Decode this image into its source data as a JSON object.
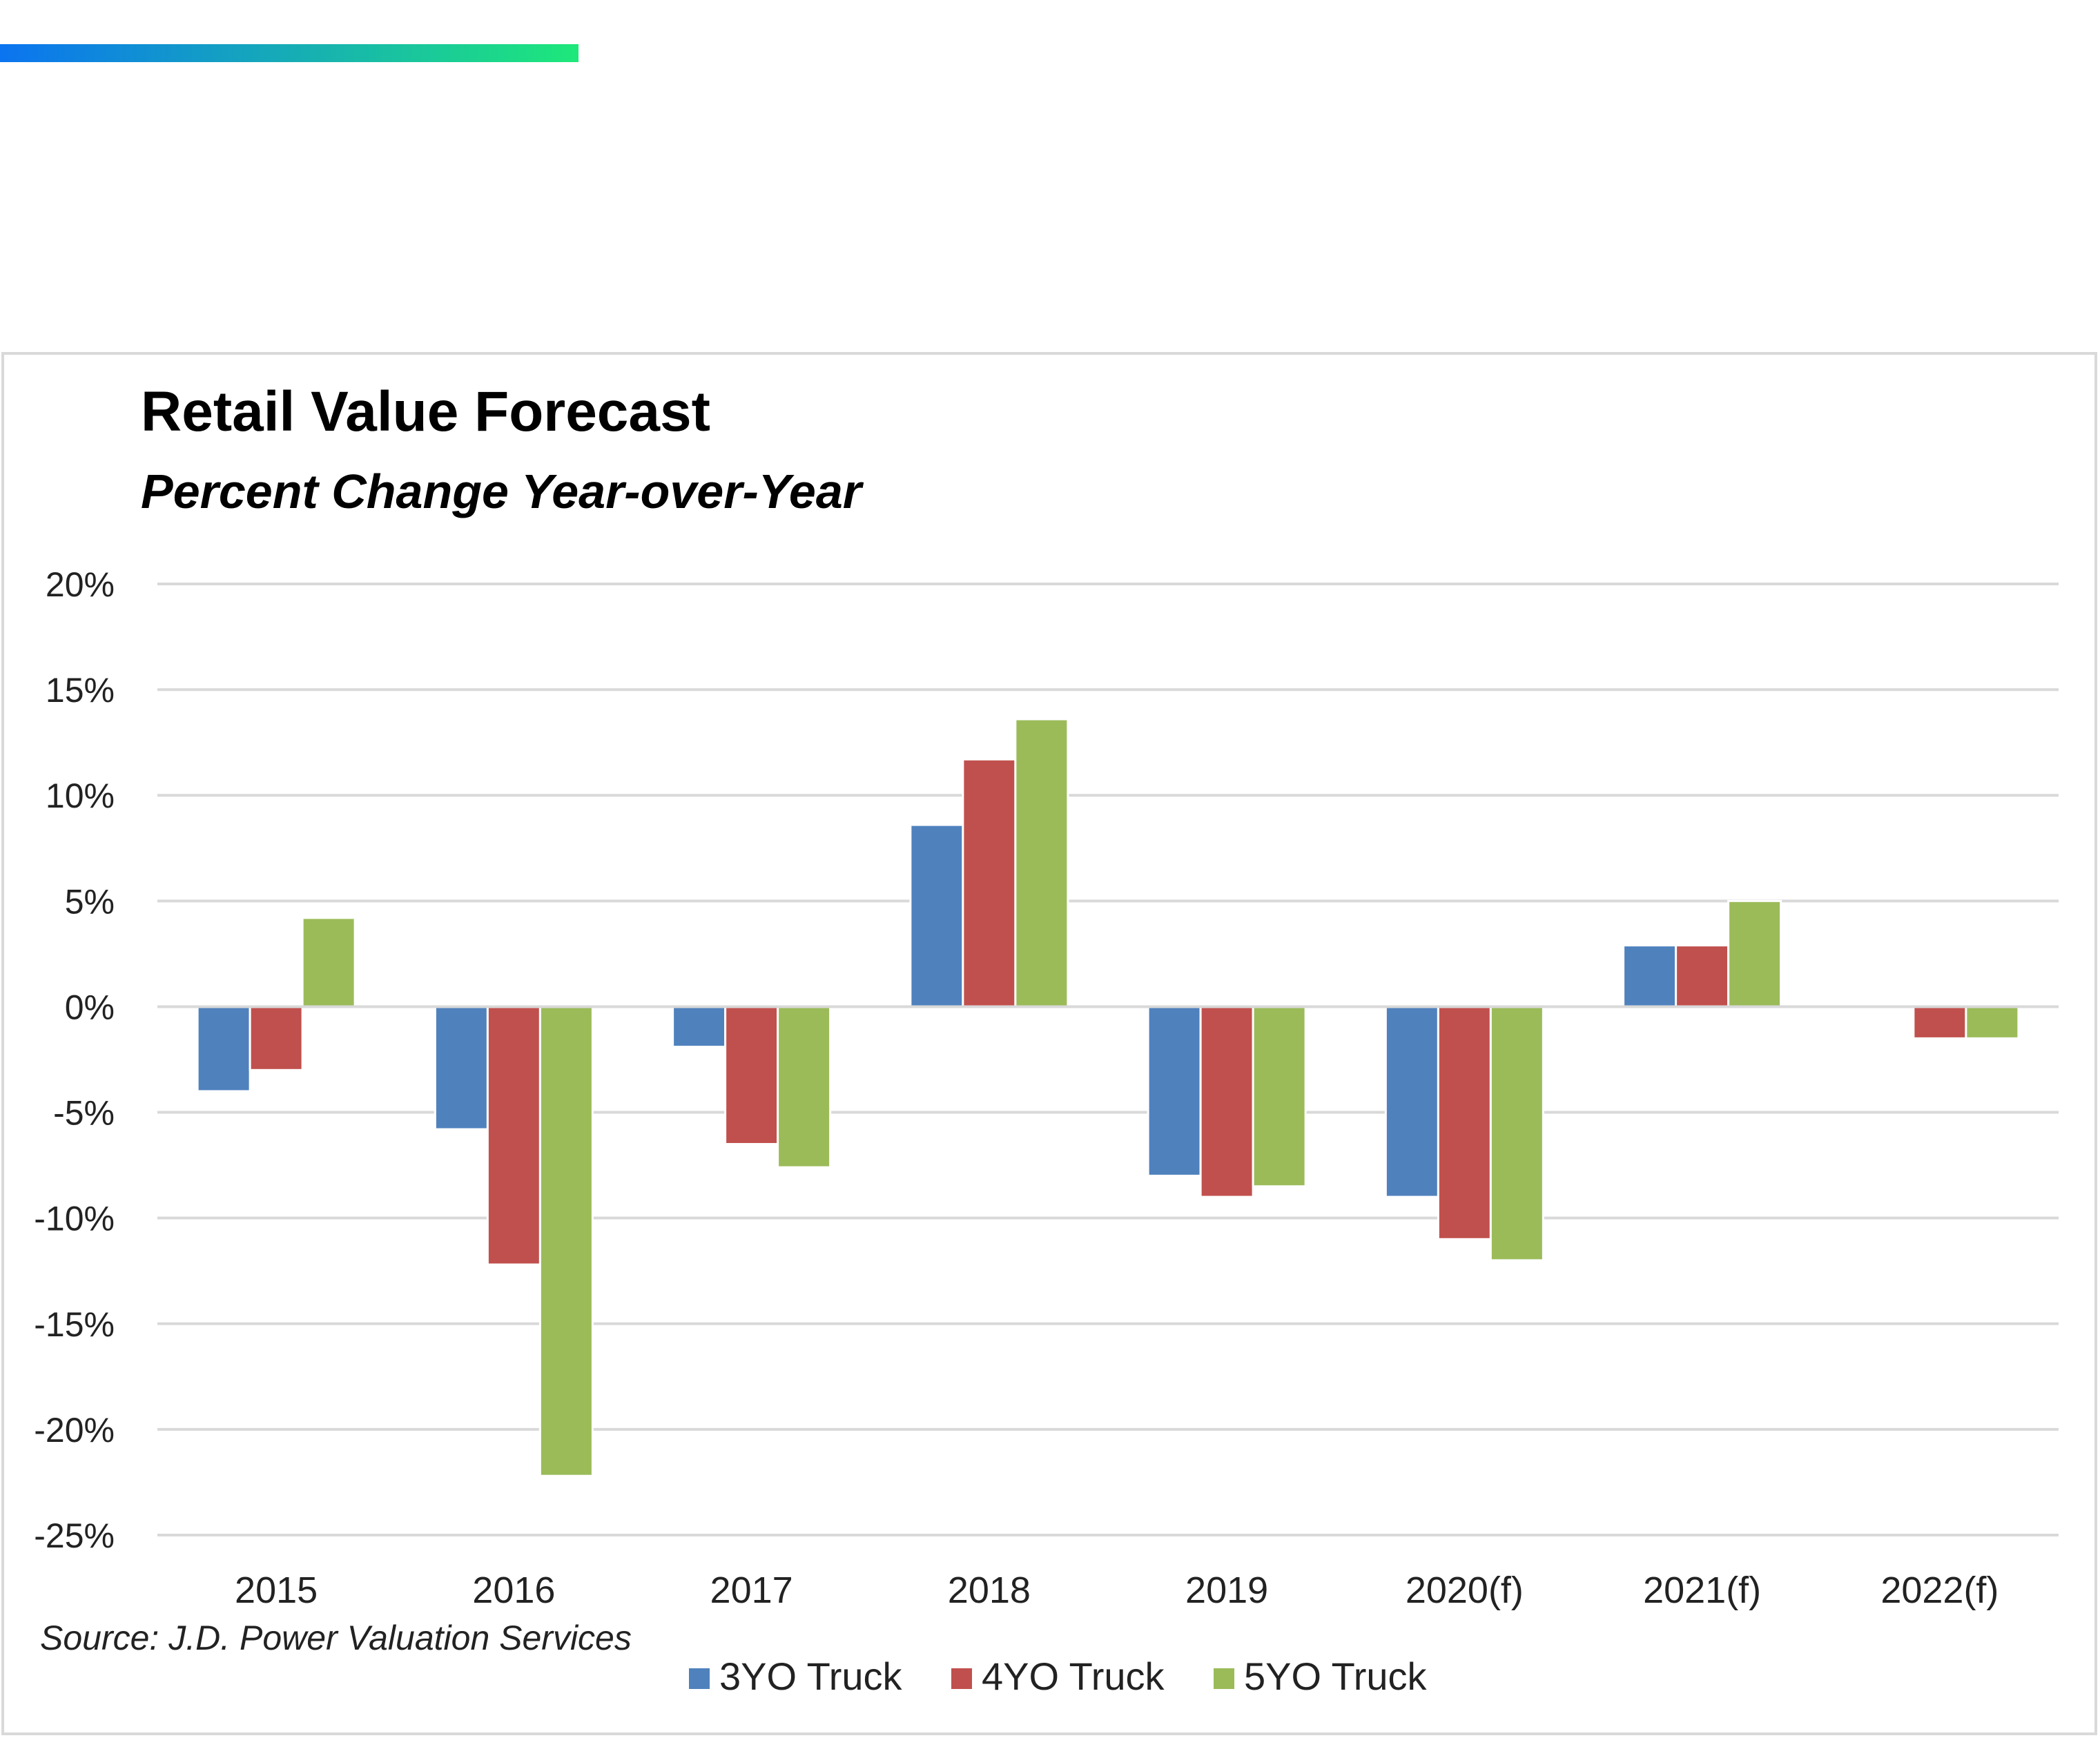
{
  "colors": {
    "accent_gradient": [
      "#0b74f0",
      "#17b2b0",
      "#1ee87a"
    ],
    "grid": "#d9d9d9",
    "series": [
      "#4f81bd",
      "#c0504d",
      "#9bbb59"
    ]
  },
  "source": "Source: J.D. Power Valuation Services",
  "chart_data": {
    "type": "bar",
    "title": "Retail Value Forecast",
    "subtitle": "Percent Change Year-over-Year",
    "xlabel": "",
    "ylabel": "",
    "ylim": [
      -25,
      20
    ],
    "yticks": [
      20,
      15,
      10,
      5,
      0,
      -5,
      -10,
      -15,
      -20,
      -25
    ],
    "ytick_labels": [
      "20%",
      "15%",
      "10%",
      "5%",
      "0%",
      "-5%",
      "-10%",
      "-15%",
      "-20%",
      "-25%"
    ],
    "grid": true,
    "legend_position": "bottom",
    "categories": [
      "2015",
      "2016",
      "2017",
      "2018",
      "2019",
      "2020(f)",
      "2021(f)",
      "2022(f)"
    ],
    "series": [
      {
        "name": "3YO Truck",
        "values": [
          -4.0,
          -5.8,
          -1.9,
          8.6,
          -8.0,
          -9.0,
          2.9,
          0.0
        ]
      },
      {
        "name": "4YO Truck",
        "values": [
          -3.0,
          -12.2,
          -6.5,
          11.7,
          -9.0,
          -11.0,
          2.9,
          -1.5
        ]
      },
      {
        "name": "5YO Truck",
        "values": [
          4.2,
          -22.2,
          -7.6,
          13.6,
          -8.5,
          -12.0,
          5.0,
          -1.5
        ]
      }
    ]
  }
}
